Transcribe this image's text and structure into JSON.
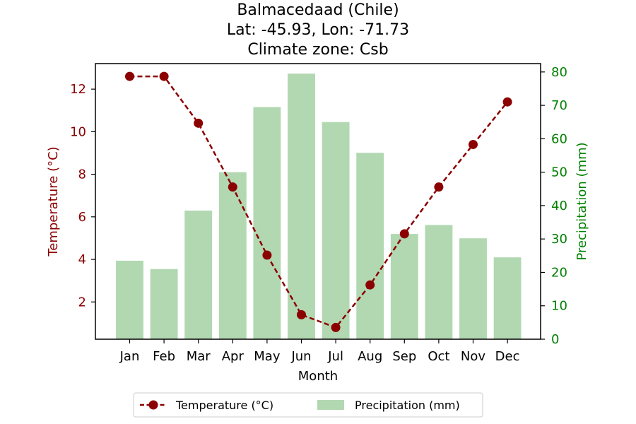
{
  "chart_data": {
    "type": "bar+line",
    "title_lines": [
      "Balmacedaad (Chile)",
      "Lat: -45.93, Lon: -71.73",
      "Climate zone: Csb"
    ],
    "xlabel": "Month",
    "ylabel_left": "Temperature (°C)",
    "ylabel_right": "Precipitation (mm)",
    "categories": [
      "Jan",
      "Feb",
      "Mar",
      "Apr",
      "May",
      "Jun",
      "Jul",
      "Aug",
      "Sep",
      "Oct",
      "Nov",
      "Dec"
    ],
    "left_axis": {
      "ylim": [
        0.25,
        13.2
      ],
      "ticks": [
        2,
        4,
        6,
        8,
        10,
        12
      ],
      "color": "#8b0000"
    },
    "right_axis": {
      "ylim": [
        0,
        82.5
      ],
      "ticks": [
        0,
        10,
        20,
        30,
        40,
        50,
        60,
        70,
        80
      ],
      "color": "#008000"
    },
    "series": [
      {
        "name": "Temperature (°C)",
        "kind": "line",
        "axis": "left",
        "color": "#8b0000",
        "values": [
          12.6,
          12.6,
          10.4,
          7.4,
          4.2,
          1.4,
          0.8,
          2.8,
          5.2,
          7.4,
          9.4,
          11.4
        ]
      },
      {
        "name": "Precipitation (mm)",
        "kind": "bar",
        "axis": "right",
        "color": "#b2d8b2",
        "values": [
          23.5,
          21.0,
          38.5,
          50.0,
          69.5,
          79.5,
          65.0,
          55.8,
          31.5,
          34.2,
          30.2,
          24.5
        ]
      }
    ],
    "grid": false,
    "legend_position": "bottom-center"
  }
}
